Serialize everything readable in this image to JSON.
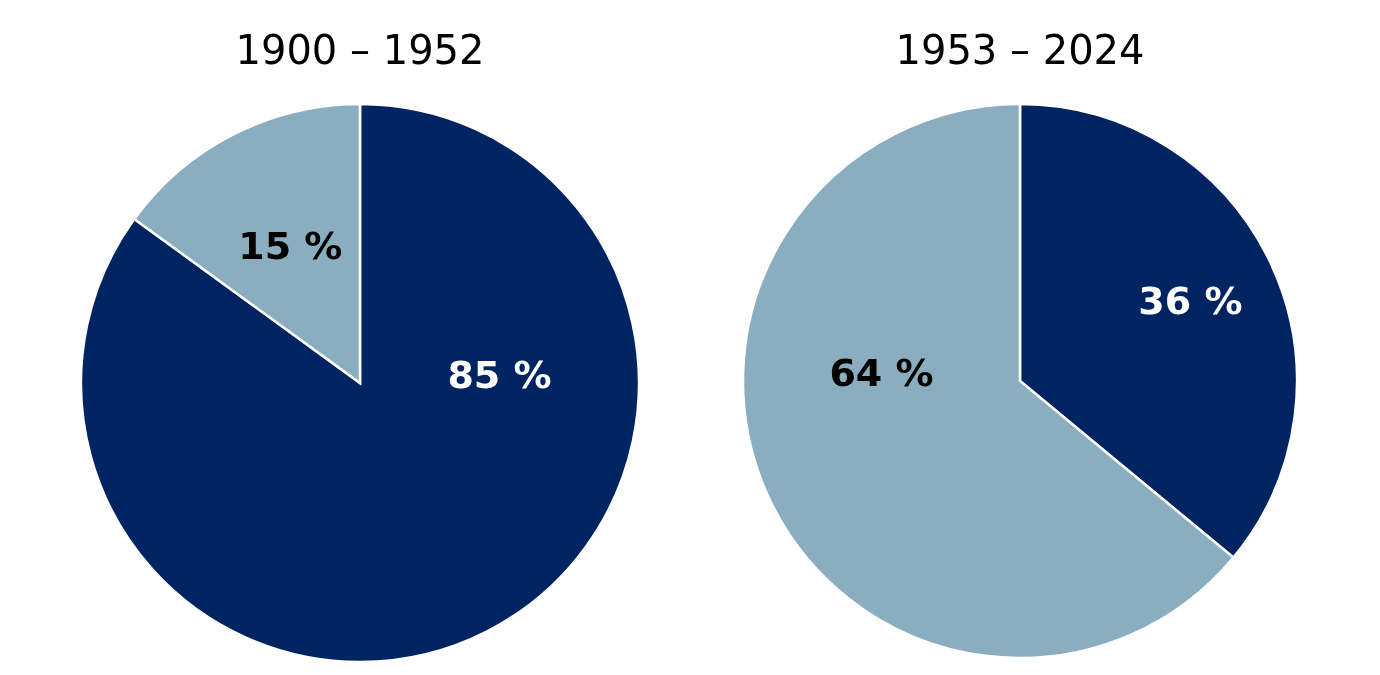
{
  "chart_data": [
    {
      "type": "pie",
      "title": "1900 – 1952",
      "categories": [
        null,
        null
      ],
      "values": [
        85,
        15
      ],
      "colors": [
        "#002361",
        "#8aaebf"
      ],
      "value_labels": [
        "85 %",
        "15 %"
      ]
    },
    {
      "type": "pie",
      "title": "1953 – 2024",
      "categories": [
        null,
        null
      ],
      "values": [
        36,
        64
      ],
      "colors": [
        "#002361",
        "#8aaebf"
      ],
      "value_labels": [
        "36 %",
        "64 %"
      ]
    }
  ]
}
